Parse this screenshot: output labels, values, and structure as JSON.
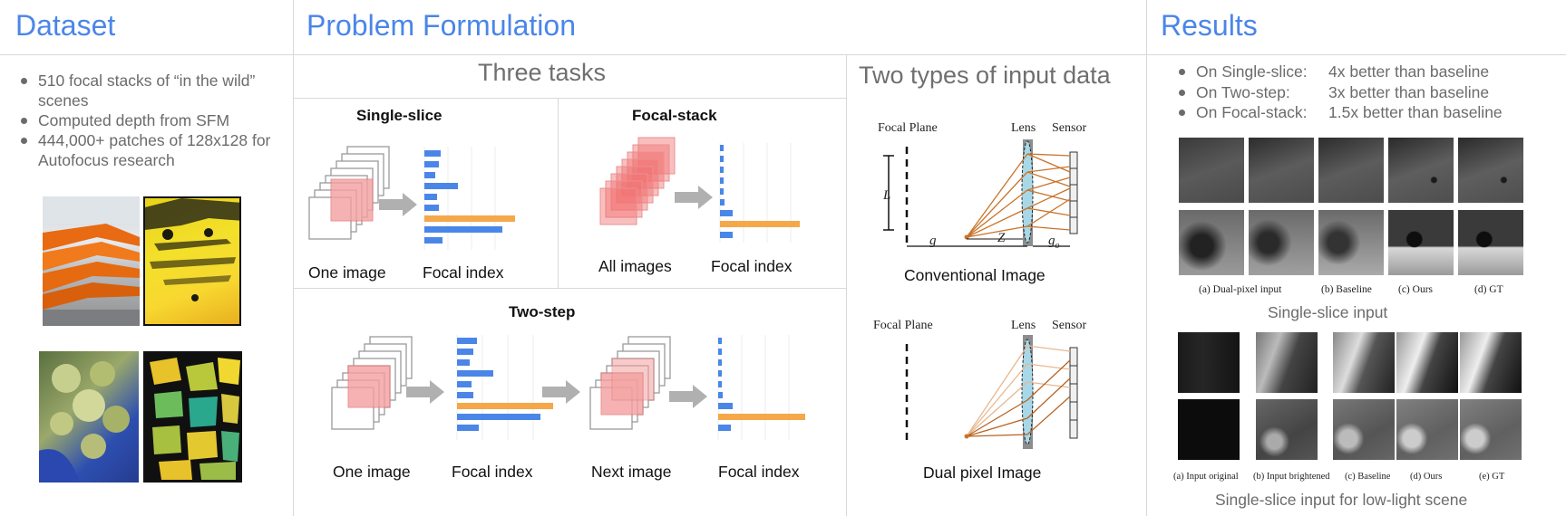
{
  "dataset": {
    "title": "Dataset",
    "bullets": [
      "510 focal stacks of “in the wild” scenes",
      "Computed depth from SFM",
      "444,000+ patches of 128x128 for Autofocus research"
    ]
  },
  "problem": {
    "title": "Problem Formulation",
    "three_tasks": "Three tasks",
    "two_types": "Two types of input data",
    "single_slice": {
      "name": "Single-slice",
      "left_caption": "One image",
      "right_caption": "Focal index"
    },
    "focal_stack": {
      "name": "Focal-stack",
      "left_caption": "All images",
      "right_caption": "Focal index"
    },
    "two_step": {
      "name": "Two-step",
      "captions": [
        "One image",
        "Focal index",
        "Next image",
        "Focal index"
      ]
    },
    "conventional": {
      "caption": "Conventional Image",
      "focal_plane": "Focal Plane",
      "lens": "Lens",
      "sensor": "Sensor",
      "L": "L",
      "g": "g",
      "Z": "Z",
      "go": "g",
      "go_sub": "o"
    },
    "dual": {
      "caption": "Dual pixel Image",
      "focal_plane": "Focal Plane",
      "lens": "Lens",
      "sensor": "Sensor"
    }
  },
  "results": {
    "title": "Results",
    "items": [
      {
        "label": "On Single-slice:",
        "value": "4x better than baseline"
      },
      {
        "label": "On Two-step:",
        "value": "3x better than baseline"
      },
      {
        "label": "On Focal-stack:",
        "value": "1.5x better than baseline"
      }
    ],
    "grid1_labels": [
      "(a)  Dual-pixel input",
      "(b)  Baseline",
      "(c)  Ours",
      "(d)  GT"
    ],
    "grid1_caption": "Single-slice input",
    "grid2_labels": [
      "(a) Input original",
      "(b) Input brightened",
      "(c) Baseline",
      "(d) Ours",
      "(e) GT"
    ],
    "grid2_caption": "Single-slice input for low-light scene"
  },
  "colors": {
    "heading": "#4a86e8",
    "bar_blue": "#4a86e8",
    "bar_orange": "#f4a84a",
    "ray": "#c8742a"
  }
}
